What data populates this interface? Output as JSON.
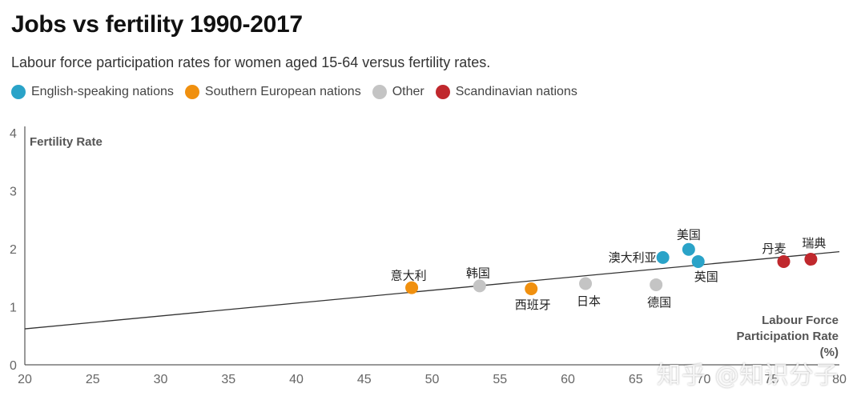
{
  "title": "Jobs vs fertility 1990-2017",
  "subtitle": "Labour force participation rates for women aged 15-64 versus fertility rates.",
  "legend": [
    {
      "label": "English-speaking nations",
      "color": "#2aa3c8"
    },
    {
      "label": "Southern European nations",
      "color": "#f0900f"
    },
    {
      "label": "Other",
      "color": "#c4c4c4"
    },
    {
      "label": "Scandinavian nations",
      "color": "#c0282d"
    }
  ],
  "watermark": "知乎 @知识分子",
  "chart_data": {
    "type": "scatter",
    "title": "Jobs vs fertility 1990-2017",
    "subtitle": "Labour force participation rates for women aged 15-64 versus fertility rates.",
    "ylabel": "Fertility Rate",
    "xlabel_lines": [
      "Labour Force",
      "Participation Rate",
      "(%)"
    ],
    "xlim": [
      20,
      80
    ],
    "ylim": [
      0,
      4
    ],
    "x_ticks": [
      "20",
      "25",
      "30",
      "35",
      "40",
      "45",
      "50",
      "55",
      "60",
      "65",
      "70",
      "75",
      "80"
    ],
    "y_ticks": [
      "0",
      "1",
      "2",
      "3",
      "4"
    ],
    "grid": false,
    "legend_position": "top",
    "trend_line": {
      "x": [
        20,
        80
      ],
      "y": [
        0.62,
        1.95
      ]
    },
    "series": [
      {
        "name": "English-speaking nations",
        "color": "#2aa3c8",
        "points": [
          {
            "label": "澳大利亚",
            "x": 67.0,
            "y": 1.85
          },
          {
            "label": "美国",
            "x": 68.9,
            "y": 1.99
          },
          {
            "label": "英国",
            "x": 69.6,
            "y": 1.78
          }
        ]
      },
      {
        "name": "Southern European nations",
        "color": "#f0900f",
        "points": [
          {
            "label": "意大利",
            "x": 48.5,
            "y": 1.33
          },
          {
            "label": "西班牙",
            "x": 57.3,
            "y": 1.31
          }
        ]
      },
      {
        "name": "Other",
        "color": "#c4c4c4",
        "points": [
          {
            "label": "韩国",
            "x": 53.5,
            "y": 1.36
          },
          {
            "label": "日本",
            "x": 61.3,
            "y": 1.4
          },
          {
            "label": "德国",
            "x": 66.5,
            "y": 1.38
          }
        ]
      },
      {
        "name": "Scandinavian nations",
        "color": "#c0282d",
        "points": [
          {
            "label": "丹麦",
            "x": 75.9,
            "y": 1.78
          },
          {
            "label": "瑞典",
            "x": 77.9,
            "y": 1.82
          }
        ]
      }
    ]
  }
}
